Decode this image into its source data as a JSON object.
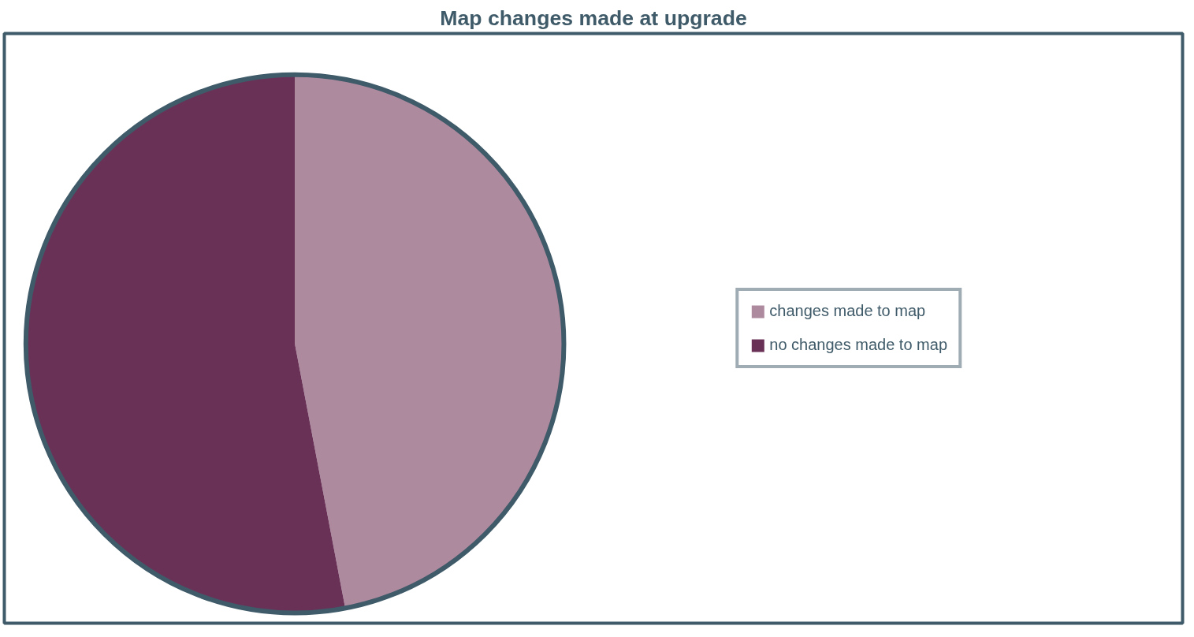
{
  "chart_data": {
    "type": "pie",
    "title": "Map changes made at upgrade",
    "categories": [
      "changes made to map",
      "no changes made to map"
    ],
    "values": [
      47,
      53
    ],
    "colors": [
      "#ae8a9f",
      "#6a3157"
    ],
    "legend": "right"
  }
}
